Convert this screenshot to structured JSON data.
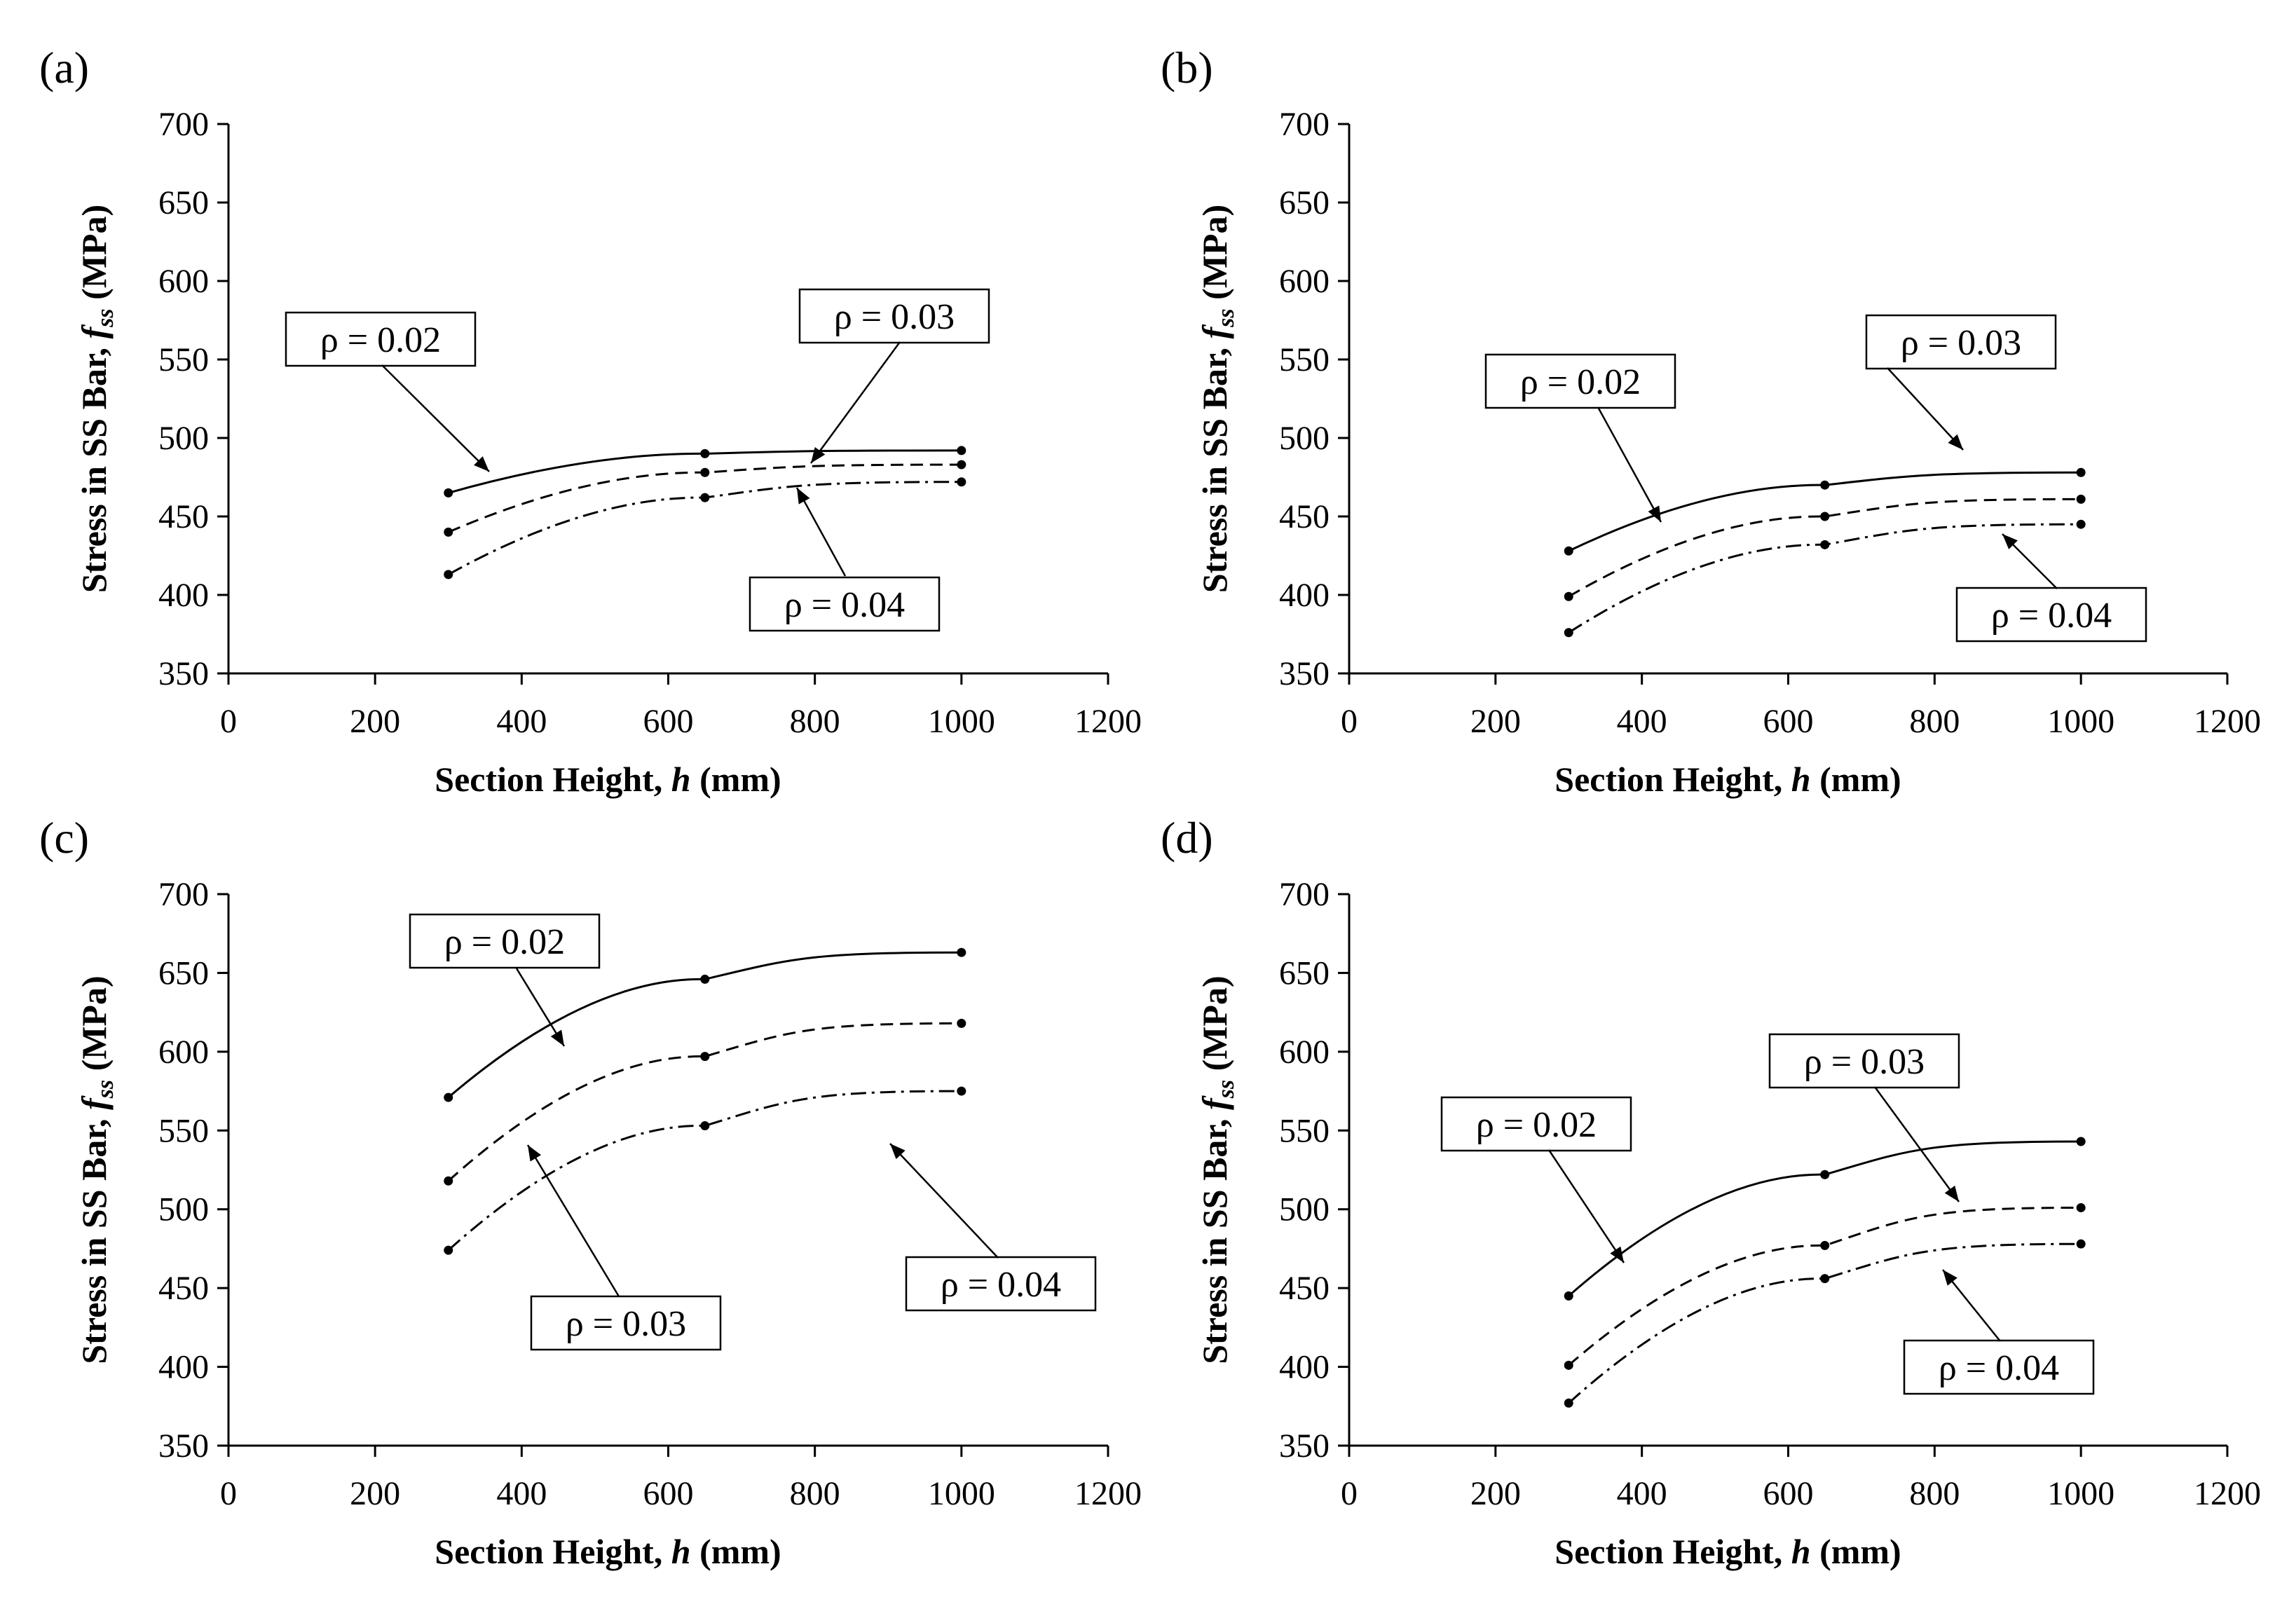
{
  "chart_data": [
    {
      "type": "line",
      "panel_label": "(a)",
      "xlabel": "Section Height, h (mm)",
      "xlabel_main": "Section Height, ",
      "xlabel_var": "h",
      "xlabel_unit": " (mm)",
      "ylabel_main": "Stress in SS Bar, ",
      "ylabel_var": "f",
      "ylabel_sub": "ss",
      "ylabel_unit": " (MPa)",
      "xlim": [
        0,
        1200
      ],
      "ylim": [
        350,
        700
      ],
      "xticks": [
        "0",
        "200",
        "400",
        "600",
        "800",
        "1000",
        "1200"
      ],
      "yticks": [
        "350",
        "400",
        "450",
        "500",
        "550",
        "600",
        "650",
        "700"
      ],
      "x": [
        300,
        650,
        1000
      ],
      "series": [
        {
          "name": "ρ = 0.02",
          "style": "solid",
          "values": [
            465,
            490,
            492
          ]
        },
        {
          "name": "ρ = 0.03",
          "style": "dashed",
          "values": [
            440,
            478,
            483
          ]
        },
        {
          "name": "ρ = 0.04",
          "style": "dashdot",
          "values": [
            413,
            462,
            472
          ]
        }
      ]
    },
    {
      "type": "line",
      "panel_label": "(b)",
      "xlabel": "Section Height, h (mm)",
      "xlabel_main": "Section Height, ",
      "xlabel_var": "h",
      "xlabel_unit": " (mm)",
      "ylabel_main": "Stress in SS Bar, ",
      "ylabel_var": "f",
      "ylabel_sub": "ss",
      "ylabel_unit": " (MPa)",
      "xlim": [
        0,
        1200
      ],
      "ylim": [
        350,
        700
      ],
      "xticks": [
        "0",
        "200",
        "400",
        "600",
        "800",
        "1000",
        "1200"
      ],
      "yticks": [
        "350",
        "400",
        "450",
        "500",
        "550",
        "600",
        "650",
        "700"
      ],
      "x": [
        300,
        650,
        1000
      ],
      "series": [
        {
          "name": "ρ = 0.02",
          "style": "solid",
          "values": [
            428,
            470,
            478
          ]
        },
        {
          "name": "ρ = 0.03",
          "style": "dashed",
          "values": [
            399,
            450,
            461
          ]
        },
        {
          "name": "ρ = 0.04",
          "style": "dashdot",
          "values": [
            376,
            432,
            445
          ]
        }
      ]
    },
    {
      "type": "line",
      "panel_label": "(c)",
      "xlabel": "Section Height, h (mm)",
      "xlabel_main": "Section Height, ",
      "xlabel_var": "h",
      "xlabel_unit": " (mm)",
      "ylabel_main": "Stress in SS Bar, ",
      "ylabel_var": "f",
      "ylabel_sub": "ss",
      "ylabel_unit": " (MPa)",
      "xlim": [
        0,
        1200
      ],
      "ylim": [
        350,
        700
      ],
      "xticks": [
        "0",
        "200",
        "400",
        "600",
        "800",
        "1000",
        "1200"
      ],
      "yticks": [
        "350",
        "400",
        "450",
        "500",
        "550",
        "600",
        "650",
        "700"
      ],
      "x": [
        300,
        650,
        1000
      ],
      "series": [
        {
          "name": "ρ = 0.02",
          "style": "solid",
          "values": [
            571,
            646,
            663
          ]
        },
        {
          "name": "ρ = 0.03",
          "style": "dashed",
          "values": [
            518,
            597,
            618
          ]
        },
        {
          "name": "ρ = 0.04",
          "style": "dashdot",
          "values": [
            474,
            553,
            575
          ]
        }
      ]
    },
    {
      "type": "line",
      "panel_label": "(d)",
      "xlabel": "Section Height, h (mm)",
      "xlabel_main": "Section Height, ",
      "xlabel_var": "h",
      "xlabel_unit": " (mm)",
      "ylabel_main": "Stress in SS Bar, ",
      "ylabel_var": "f",
      "ylabel_sub": "ss",
      "ylabel_unit": " (MPa)",
      "xlim": [
        0,
        1200
      ],
      "ylim": [
        350,
        700
      ],
      "xticks": [
        "0",
        "200",
        "400",
        "600",
        "800",
        "1000",
        "1200"
      ],
      "yticks": [
        "350",
        "400",
        "450",
        "500",
        "550",
        "600",
        "650",
        "700"
      ],
      "x": [
        300,
        650,
        1000
      ],
      "series": [
        {
          "name": "ρ = 0.02",
          "style": "solid",
          "values": [
            445,
            522,
            543
          ]
        },
        {
          "name": "ρ = 0.03",
          "style": "dashed",
          "values": [
            401,
            477,
            501
          ]
        },
        {
          "name": "ρ = 0.04",
          "style": "dashdot",
          "values": [
            377,
            456,
            478
          ]
        }
      ]
    }
  ]
}
